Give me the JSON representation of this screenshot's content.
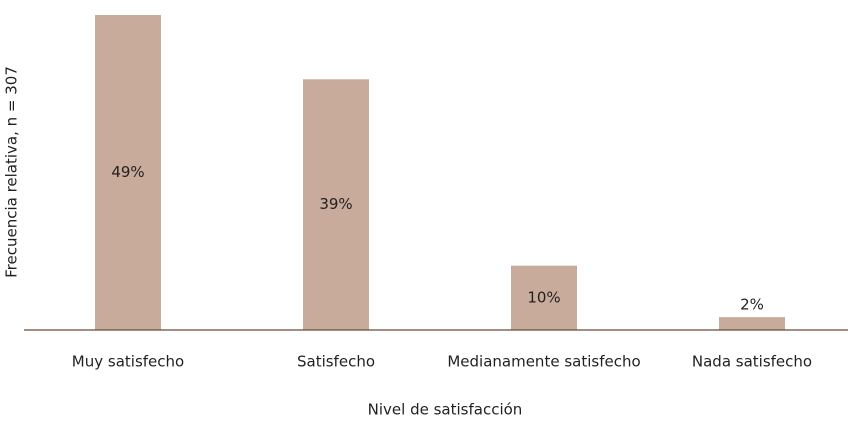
{
  "chart_data": {
    "type": "bar",
    "x_label": "Nivel de satisfacción",
    "y_label": "Frecuencia relativa, n = 307",
    "categories": [
      "Muy satisfecho",
      "Satisfecho",
      "Medianamente satisfecho",
      "Nada satisfecho"
    ],
    "values": [
      49,
      39,
      10,
      2
    ],
    "value_labels": [
      "49%",
      "39%",
      "10%",
      "2%"
    ],
    "color": "#c9ab9c"
  }
}
